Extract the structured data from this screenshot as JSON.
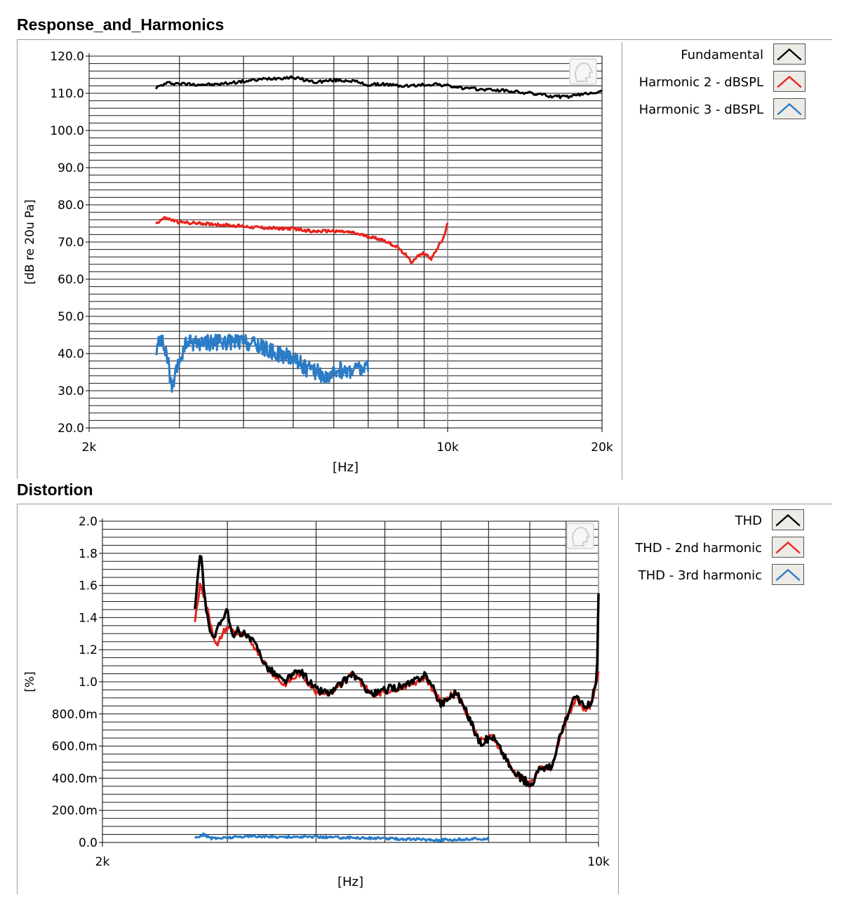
{
  "panels": [
    {
      "title": "Response_and_Harmonics",
      "legend": [
        {
          "label": "Fundamental",
          "color": "#000000"
        },
        {
          "label": "Harmonic 2 - dBSPL",
          "color": "#e8231d"
        },
        {
          "label": "Harmonic 3 - dBSPL",
          "color": "#2a7cc7"
        }
      ]
    },
    {
      "title": "Distortion",
      "legend": [
        {
          "label": "THD",
          "color": "#000000"
        },
        {
          "label": "THD - 2nd harmonic",
          "color": "#e8231d"
        },
        {
          "label": "THD - 3rd harmonic",
          "color": "#2a7cc7"
        }
      ]
    }
  ],
  "chart_data": [
    {
      "type": "line",
      "title": "Response_and_Harmonics",
      "xlabel": "[Hz]",
      "ylabel": "[dB re 20u Pa]",
      "xscale": "log",
      "xlim": [
        2000,
        20000
      ],
      "ylim": [
        20,
        120
      ],
      "x_tick_labels": [
        "2k",
        "10k",
        "20k"
      ],
      "y_tick_labels": [
        "120.0",
        "110.0",
        "100.0",
        "90.0",
        "80.0",
        "70.0",
        "60.0",
        "50.0",
        "40.0",
        "30.0",
        "20.0"
      ],
      "grid": true,
      "legend_position": "right",
      "series": [
        {
          "name": "Fundamental",
          "color": "#000000",
          "noise": 0.4,
          "width": 3,
          "x": [
            2700,
            2850,
            3100,
            3500,
            4000,
            4500,
            5000,
            5500,
            6000,
            6500,
            7000,
            7500,
            8000,
            8500,
            9000,
            9500,
            10000,
            11000,
            12000,
            13000,
            14000,
            15000,
            16000,
            17000,
            18000,
            19000,
            20000
          ],
          "y": [
            111.5,
            112.8,
            112.5,
            112.3,
            113.2,
            114.0,
            114.3,
            113.0,
            113.5,
            113.4,
            112.2,
            112.5,
            112.0,
            112.0,
            112.3,
            112.5,
            112.0,
            111.2,
            111.0,
            110.7,
            110.2,
            109.8,
            109.2,
            109.0,
            109.5,
            110.2,
            110.5
          ]
        },
        {
          "name": "Harmonic 2 - dBSPL",
          "color": "#e8231d",
          "noise": 0.4,
          "width": 3,
          "x": [
            2700,
            2800,
            3000,
            3500,
            4000,
            4500,
            5000,
            5500,
            6000,
            6500,
            7000,
            7500,
            8000,
            8300,
            8500,
            8700,
            9000,
            9300,
            9600,
            9800,
            10000
          ],
          "y": [
            75.0,
            76.5,
            75.3,
            74.8,
            74.2,
            73.7,
            73.6,
            72.8,
            73.0,
            72.5,
            71.5,
            70.5,
            68.5,
            66.5,
            64.5,
            66.0,
            67.0,
            65.5,
            69.0,
            71.0,
            75.0
          ]
        },
        {
          "name": "Harmonic 3 - dBSPL",
          "color": "#2a7cc7",
          "noise": 2.2,
          "width": 3,
          "x": [
            2700,
            2750,
            2850,
            2900,
            3000,
            3100,
            3300,
            3600,
            4000,
            4300,
            4600,
            5000,
            5300,
            5600,
            5900,
            6100,
            6300,
            6600,
            7000
          ],
          "y": [
            39,
            45,
            38,
            30,
            38,
            43,
            43,
            43,
            43,
            42,
            40,
            39,
            36,
            35,
            33,
            36,
            35,
            36,
            36
          ]
        }
      ]
    },
    {
      "type": "line",
      "title": "Distortion",
      "xlabel": "[Hz]",
      "ylabel": "[%]",
      "xscale": "log",
      "xlim": [
        2000,
        10000
      ],
      "ylim": [
        0,
        2
      ],
      "x_tick_labels": [
        "2k",
        "10k"
      ],
      "y_tick_labels": [
        "2.0",
        "1.8",
        "1.6",
        "1.4",
        "1.2",
        "1.0",
        "800.0m",
        "600.0m",
        "400.0m",
        "200.0m",
        "0.0"
      ],
      "grid": true,
      "legend_position": "right",
      "series": [
        {
          "name": "THD - 2nd harmonic",
          "color": "#e8231d",
          "noise": 0.02,
          "width": 3,
          "x": [
            2700,
            2750,
            2800,
            2850,
            2900,
            2950,
            3000,
            3100,
            3200,
            3300,
            3400,
            3600,
            3800,
            4000,
            4200,
            4500,
            4800,
            5100,
            5400,
            5700,
            6000,
            6300,
            6600,
            6800,
            7100,
            7300,
            7600,
            7900,
            8000,
            8300,
            8600,
            8800,
            9000,
            9300,
            9600,
            9800,
            9950,
            10000
          ],
          "y": [
            1.38,
            1.62,
            1.48,
            1.34,
            1.21,
            1.3,
            1.34,
            1.3,
            1.28,
            1.2,
            1.1,
            0.98,
            1.05,
            0.94,
            0.93,
            1.05,
            0.92,
            0.95,
            0.98,
            1.03,
            0.87,
            0.94,
            0.76,
            0.63,
            0.66,
            0.57,
            0.44,
            0.38,
            0.36,
            0.46,
            0.46,
            0.63,
            0.76,
            0.9,
            0.82,
            0.87,
            1.0,
            1.05
          ]
        },
        {
          "name": "THD",
          "color": "#000000",
          "noise": 0.025,
          "width": 3.5,
          "x": [
            2700,
            2750,
            2780,
            2820,
            2880,
            2950,
            3000,
            3050,
            3100,
            3200,
            3300,
            3400,
            3600,
            3800,
            4000,
            4200,
            4500,
            4800,
            5100,
            5400,
            5700,
            6000,
            6300,
            6600,
            6800,
            7100,
            7300,
            7600,
            7900,
            8000,
            8300,
            8600,
            8800,
            9000,
            9300,
            9600,
            9800,
            9950,
            10000
          ],
          "y": [
            1.45,
            1.82,
            1.58,
            1.35,
            1.28,
            1.4,
            1.46,
            1.26,
            1.32,
            1.28,
            1.22,
            1.1,
            1.0,
            1.07,
            0.95,
            0.93,
            1.05,
            0.92,
            0.96,
            0.98,
            1.05,
            0.86,
            0.94,
            0.76,
            0.62,
            0.66,
            0.57,
            0.43,
            0.38,
            0.35,
            0.47,
            0.46,
            0.64,
            0.77,
            0.92,
            0.82,
            0.9,
            1.02,
            1.55
          ]
        },
        {
          "name": "THD - 3rd harmonic",
          "color": "#2a7cc7",
          "noise": 0.008,
          "width": 3,
          "x": [
            2700,
            2780,
            2850,
            3000,
            3200,
            3500,
            4000,
            4500,
            5000,
            5500,
            6000,
            6500,
            7000
          ],
          "y": [
            0.03,
            0.05,
            0.025,
            0.03,
            0.04,
            0.035,
            0.035,
            0.03,
            0.025,
            0.02,
            0.015,
            0.02,
            0.025
          ]
        }
      ]
    }
  ]
}
